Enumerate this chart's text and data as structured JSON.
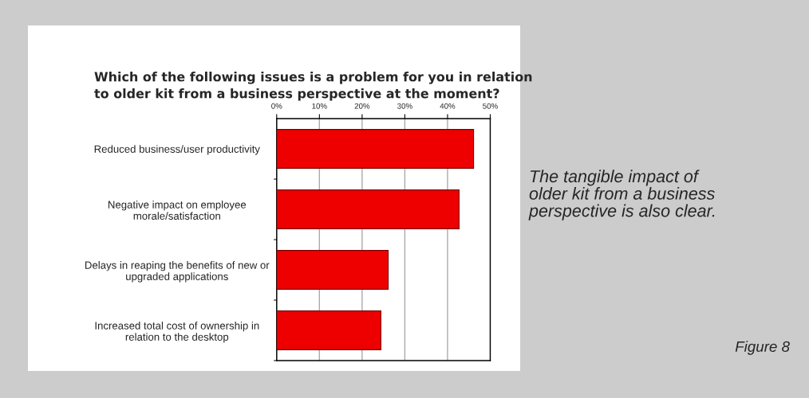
{
  "chart_data": {
    "type": "bar",
    "orientation": "horizontal",
    "title": "Which of the following issues is a problem for you in relation\nto older kit from a business perspective at the moment?",
    "categories": [
      "Reduced business/user productivity",
      "Negative impact on employee\nmorale/satisfaction",
      "Delays in reaping the benefits of new or\nupgraded applications",
      "Increased total cost of ownership in\nrelation to the desktop"
    ],
    "values": [
      46.1,
      42.7,
      26.1,
      24.4
    ],
    "color": "#ee0000",
    "xlim": [
      0,
      50
    ],
    "xticks": [
      {
        "value": 0,
        "label": "0%"
      },
      {
        "value": 10,
        "label": "10%"
      },
      {
        "value": 20,
        "label": "20%"
      },
      {
        "value": 30,
        "label": "30%"
      },
      {
        "value": 40,
        "label": "40%"
      },
      {
        "value": 50,
        "label": "50%"
      }
    ],
    "grid": "x",
    "legend": false,
    "annotations": [
      "The tangible impact of\nolder kit from a business\nperspective is also clear.",
      "Figure 8"
    ]
  }
}
